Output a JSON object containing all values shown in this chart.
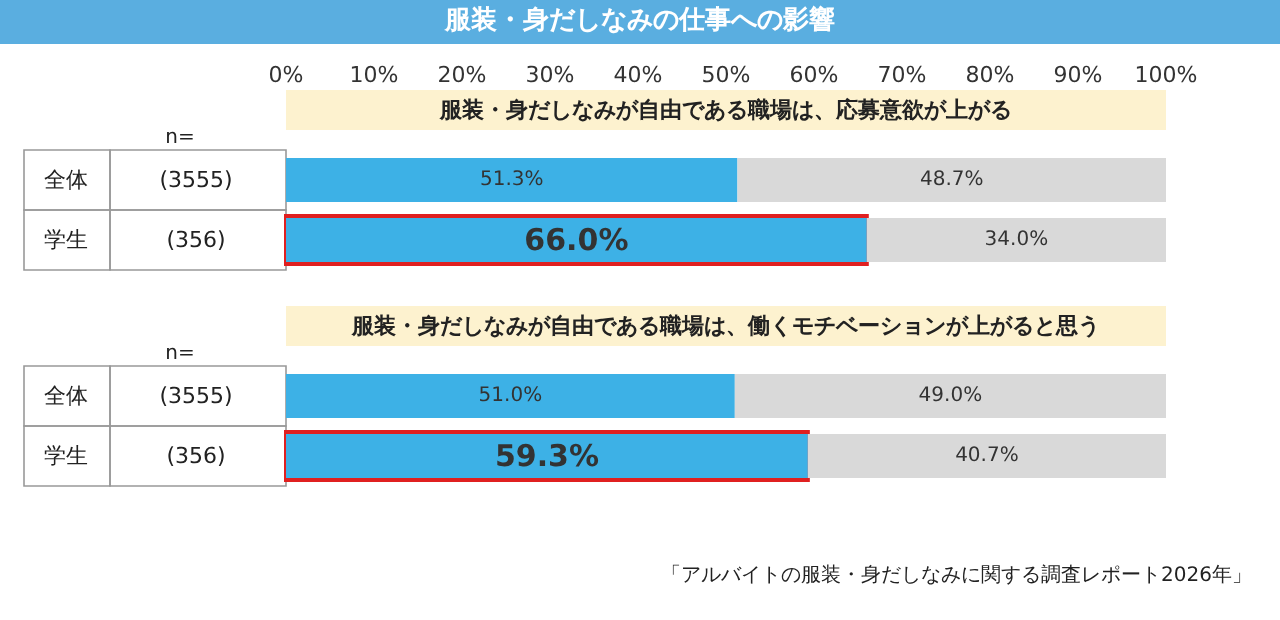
{
  "chart_data": [
    {
      "type": "bar",
      "orientation": "horizontal",
      "stacked": true,
      "title": "服装・身だしなみの仕事への影響",
      "subtitle": "服装・身だしなみが自由である職場は、応募意欲が上がる",
      "categories": [
        "全体",
        "学生"
      ],
      "annotations": [
        "n=",
        "(3555)",
        "(356)"
      ],
      "series": [
        {
          "color": "#3db1e6",
          "values": [
            51.3,
            66.0
          ],
          "value_labels": [
            "51.3%",
            "66.0%"
          ]
        },
        {
          "color": "#d9d9d9",
          "values": [
            48.7,
            34.0
          ],
          "value_labels": [
            "48.7%",
            "34.0%"
          ]
        }
      ],
      "xlim": [
        0,
        100
      ],
      "xticks": [
        {
          "value": 0,
          "label": "0%"
        },
        {
          "value": 10,
          "label": "10%"
        },
        {
          "value": 20,
          "label": "20%"
        },
        {
          "value": 30,
          "label": "30%"
        },
        {
          "value": 40,
          "label": "40%"
        },
        {
          "value": 50,
          "label": "50%"
        },
        {
          "value": 60,
          "label": "60%"
        },
        {
          "value": 70,
          "label": "70%"
        },
        {
          "value": 80,
          "label": "80%"
        },
        {
          "value": 90,
          "label": "90%"
        },
        {
          "value": 100,
          "label": "100%"
        }
      ]
    },
    {
      "type": "bar",
      "orientation": "horizontal",
      "stacked": true,
      "subtitle": "服装・身だしなみが自由である職場は、働くモチベーションが上がると思う",
      "categories": [
        "全体",
        "学生"
      ],
      "annotations": [
        "n=",
        "(3555)",
        "(356)",
        "「アルバイトの服装・身だしなみに関する調査レポート2026年」"
      ],
      "series": [
        {
          "color": "#3db1e6",
          "values": [
            51.0,
            59.3
          ],
          "value_labels": [
            "51.0%",
            "59.3%"
          ]
        },
        {
          "color": "#d9d9d9",
          "values": [
            49.0,
            40.7
          ],
          "value_labels": [
            "49.0%",
            "40.7%"
          ]
        }
      ],
      "xlim": [
        0,
        100
      ],
      "tick_labels": false
    }
  ]
}
